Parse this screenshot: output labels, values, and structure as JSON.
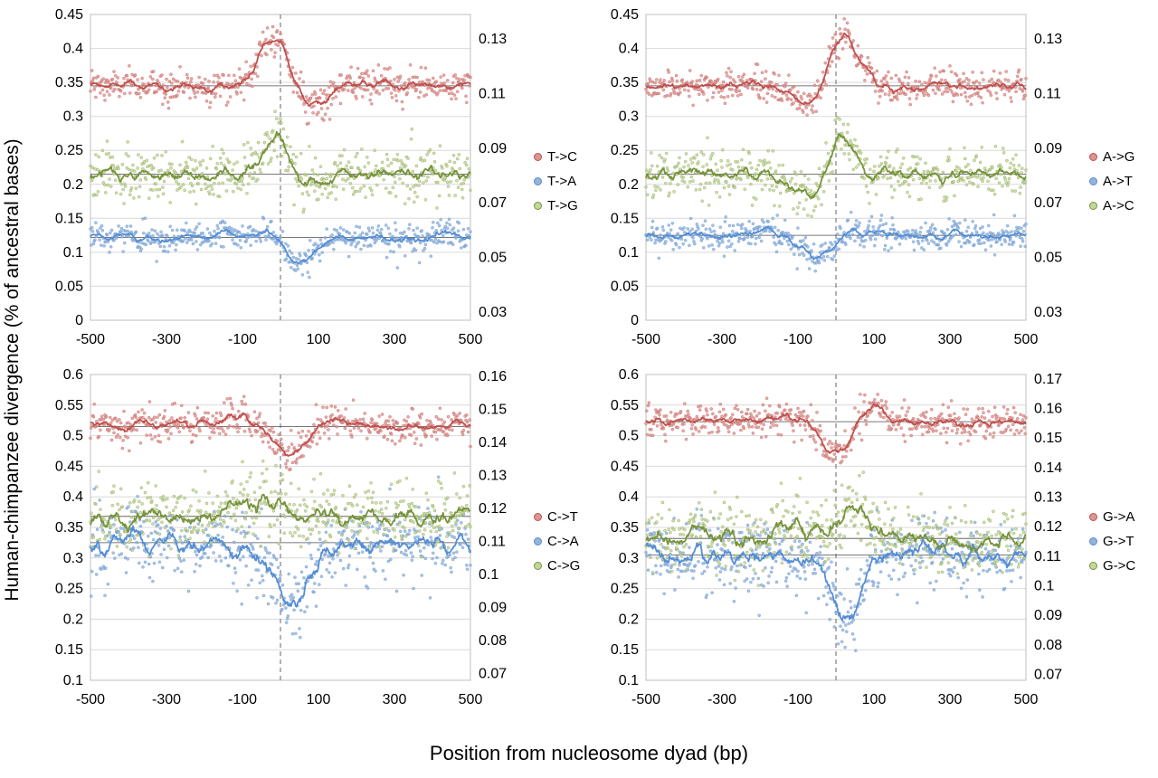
{
  "figure": {
    "y_axis_title": "Human-chimpanzee divergence (% of ancestral bases)",
    "x_axis_title": "Position from nucleosome dyad (bp)"
  },
  "style": {
    "grid_color": "#d9d9d9",
    "border_color": "#bfbfbf",
    "baseline_color": "#4d4d4d",
    "dyad_line_color": "#7f7f7f",
    "text_color": "#000000"
  },
  "chart_data": [
    {
      "id": "top-left-T-substitutions",
      "type": "scatter",
      "x_axis": {
        "min": -500,
        "max": 500,
        "ticks": [
          "-500",
          "-300",
          "-100",
          "100",
          "300",
          "500"
        ]
      },
      "left_axis": {
        "min": 0,
        "max": 0.45,
        "ticks": [
          "0.45",
          "0.4",
          "0.35",
          "0.3",
          "0.25",
          "0.2",
          "0.15",
          "0.1",
          "0.05",
          "0"
        ]
      },
      "right_axis": {
        "min": 0.027,
        "max": 0.139,
        "ticks": [
          "0.13",
          "0.11",
          "0.09",
          "0.07",
          "0.05",
          "0.03"
        ]
      },
      "dyad_x": 0,
      "series": [
        {
          "label": "T->C",
          "point_color": "#d99694",
          "line_color": "#c0504d",
          "baseline": 0.345,
          "noise_sd": 0.012,
          "features": [
            {
              "center": -15,
              "sigma": 38,
              "amp": 0.077
            },
            {
              "center": 72,
              "sigma": 42,
              "amp": -0.03
            }
          ]
        },
        {
          "label": "T->A",
          "point_color": "#95b3d7",
          "line_color": "#558ed5",
          "baseline": 0.122,
          "noise_sd": 0.011,
          "features": [
            {
              "center": 55,
              "sigma": 38,
              "amp": -0.038
            },
            {
              "center": -60,
              "sigma": 60,
              "amp": 0.006
            }
          ]
        },
        {
          "label": "T->G",
          "point_color": "#c3d69b",
          "line_color": "#77933c",
          "baseline": 0.215,
          "noise_sd": 0.018,
          "features": [
            {
              "center": -8,
              "sigma": 32,
              "amp": 0.058
            },
            {
              "center": 68,
              "sigma": 38,
              "amp": -0.022
            }
          ]
        }
      ]
    },
    {
      "id": "top-right-A-substitutions",
      "type": "scatter",
      "x_axis": {
        "min": -500,
        "max": 500,
        "ticks": [
          "-500",
          "-300",
          "-100",
          "100",
          "300",
          "500"
        ]
      },
      "left_axis": {
        "min": 0,
        "max": 0.45,
        "ticks": [
          "0.45",
          "0.4",
          "0.35",
          "0.3",
          "0.25",
          "0.2",
          "0.15",
          "0.1",
          "0.05",
          "0"
        ]
      },
      "right_axis": {
        "min": 0.027,
        "max": 0.139,
        "ticks": [
          "0.13",
          "0.11",
          "0.09",
          "0.07",
          "0.05",
          "0.03"
        ]
      },
      "dyad_x": 0,
      "series": [
        {
          "label": "A->G",
          "point_color": "#d99694",
          "line_color": "#c0504d",
          "baseline": 0.345,
          "noise_sd": 0.012,
          "features": [
            {
              "center": 20,
              "sigma": 38,
              "amp": 0.077
            },
            {
              "center": -70,
              "sigma": 42,
              "amp": -0.03
            }
          ]
        },
        {
          "label": "A->T",
          "point_color": "#95b3d7",
          "line_color": "#558ed5",
          "baseline": 0.125,
          "noise_sd": 0.011,
          "features": [
            {
              "center": -50,
              "sigma": 38,
              "amp": -0.036
            },
            {
              "center": 60,
              "sigma": 60,
              "amp": 0.006
            }
          ]
        },
        {
          "label": "A->C",
          "point_color": "#c3d69b",
          "line_color": "#77933c",
          "baseline": 0.215,
          "noise_sd": 0.018,
          "features": [
            {
              "center": 15,
              "sigma": 32,
              "amp": 0.056
            },
            {
              "center": -65,
              "sigma": 38,
              "amp": -0.04
            }
          ]
        }
      ]
    },
    {
      "id": "bottom-left-C-substitutions",
      "type": "scatter",
      "x_axis": {
        "min": -500,
        "max": 500,
        "ticks": [
          "-500",
          "-300",
          "-100",
          "100",
          "300",
          "500"
        ]
      },
      "left_axis": {
        "min": 0.1,
        "max": 0.6,
        "ticks": [
          "0.6",
          "0.55",
          "0.5",
          "0.45",
          "0.4",
          "0.35",
          "0.3",
          "0.25",
          "0.2",
          "0.15",
          "0.1"
        ]
      },
      "right_axis": {
        "min": 0.068,
        "max": 0.1605,
        "ticks": [
          "0.16",
          "0.15",
          "0.14",
          "0.13",
          "0.12",
          "0.11",
          "0.1",
          "0.09",
          "0.08",
          "0.07"
        ]
      },
      "dyad_x": 0,
      "series": [
        {
          "label": "C->T",
          "point_color": "#d99694",
          "line_color": "#c0504d",
          "baseline": 0.515,
          "noise_sd": 0.014,
          "features": [
            {
              "center": 25,
              "sigma": 45,
              "amp": -0.047
            },
            {
              "center": -120,
              "sigma": 50,
              "amp": 0.015
            },
            {
              "center": 120,
              "sigma": 40,
              "amp": 0.01
            }
          ]
        },
        {
          "label": "C->A",
          "point_color": "#95b3d7",
          "line_color": "#558ed5",
          "baseline": 0.325,
          "noise_sd": 0.03,
          "features": [
            {
              "center": 30,
              "sigma": 40,
              "amp": -0.105
            },
            {
              "center": -80,
              "sigma": 60,
              "amp": -0.015
            }
          ]
        },
        {
          "label": "C->G",
          "point_color": "#c3d69b",
          "line_color": "#77933c",
          "baseline": 0.368,
          "noise_sd": 0.03,
          "features": [
            {
              "center": -55,
              "sigma": 55,
              "amp": 0.03
            },
            {
              "center": 60,
              "sigma": 45,
              "amp": -0.012
            }
          ]
        }
      ]
    },
    {
      "id": "bottom-right-G-substitutions",
      "type": "scatter",
      "x_axis": {
        "min": -500,
        "max": 500,
        "ticks": [
          "-500",
          "-300",
          "-100",
          "100",
          "300",
          "500"
        ]
      },
      "left_axis": {
        "min": 0.1,
        "max": 0.6,
        "ticks": [
          "0.6",
          "0.55",
          "0.5",
          "0.45",
          "0.4",
          "0.35",
          "0.3",
          "0.25",
          "0.2",
          "0.15",
          "0.1"
        ]
      },
      "right_axis": {
        "min": 0.068,
        "max": 0.1715,
        "ticks": [
          "0.17",
          "0.16",
          "0.15",
          "0.14",
          "0.13",
          "0.12",
          "0.11",
          "0.1",
          "0.09",
          "0.08",
          "0.07"
        ]
      },
      "dyad_x": 0,
      "series": [
        {
          "label": "G->A",
          "point_color": "#d99694",
          "line_color": "#c0504d",
          "baseline": 0.523,
          "noise_sd": 0.014,
          "features": [
            {
              "center": 0,
              "sigma": 42,
              "amp": -0.055
            },
            {
              "center": 90,
              "sigma": 35,
              "amp": 0.028
            },
            {
              "center": -110,
              "sigma": 45,
              "amp": 0.012
            }
          ]
        },
        {
          "label": "G->T",
          "point_color": "#95b3d7",
          "line_color": "#558ed5",
          "baseline": 0.305,
          "noise_sd": 0.03,
          "features": [
            {
              "center": 30,
              "sigma": 40,
              "amp": -0.1
            },
            {
              "center": -70,
              "sigma": 60,
              "amp": -0.01
            }
          ]
        },
        {
          "label": "G->C",
          "point_color": "#c3d69b",
          "line_color": "#77933c",
          "baseline": 0.332,
          "noise_sd": 0.03,
          "features": [
            {
              "center": 45,
              "sigma": 45,
              "amp": 0.045
            },
            {
              "center": -120,
              "sigma": 60,
              "amp": 0.008
            }
          ]
        }
      ]
    }
  ]
}
